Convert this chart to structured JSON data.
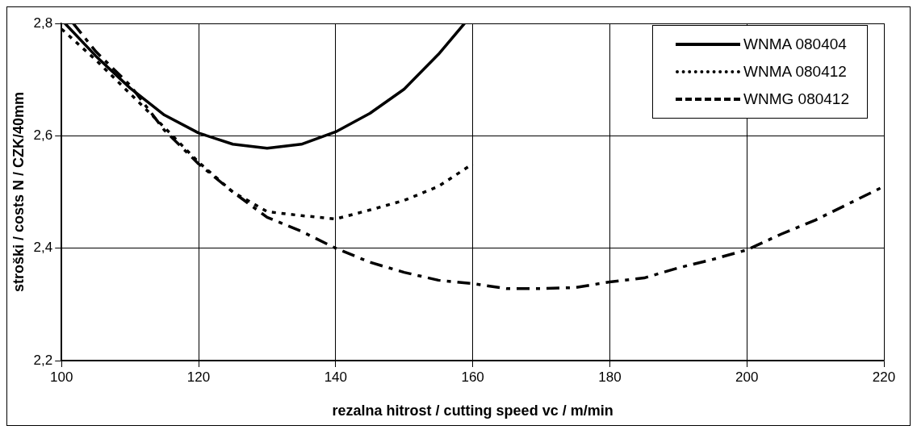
{
  "chart_data": {
    "type": "line",
    "xlabel": "rezalna hitrost / cutting speed vc / m/min",
    "ylabel": "stroški / costs N / CZK/40mm",
    "xlim": [
      100,
      220
    ],
    "xticks": [
      100,
      120,
      140,
      160,
      180,
      200,
      220
    ],
    "ylim": [
      2.2,
      2.8
    ],
    "yticks": [
      {
        "value": 2.2,
        "label": "2,2"
      },
      {
        "value": 2.4,
        "label": "2,4"
      },
      {
        "value": 2.6,
        "label": "2,6"
      },
      {
        "value": 2.8,
        "label": "2,8"
      }
    ],
    "grid": true,
    "legend": "top right",
    "marker": "none",
    "series": [
      {
        "name": "WNMA 080404",
        "color": "#000000",
        "line_style": "solid",
        "x": [
          100.5,
          105,
          110,
          115,
          120,
          125,
          130,
          135,
          140,
          145,
          150,
          155,
          158.8
        ],
        "values": [
          2.8,
          2.742,
          2.685,
          2.637,
          2.605,
          2.585,
          2.578,
          2.585,
          2.607,
          2.64,
          2.683,
          2.745,
          2.8
        ]
      },
      {
        "name": "WNMA 080412",
        "color": "#000000",
        "line_style": "dotted",
        "x": [
          100,
          105,
          110,
          115,
          120,
          125,
          130,
          135,
          140,
          145,
          150,
          155,
          160
        ],
        "values": [
          2.79,
          2.735,
          2.675,
          2.615,
          2.553,
          2.5,
          2.465,
          2.458,
          2.452,
          2.468,
          2.485,
          2.51,
          2.55
        ]
      },
      {
        "name": "WNMG 080412",
        "color": "#000000",
        "line_style": "dashed",
        "x": [
          101.7,
          105,
          110,
          115,
          120,
          125,
          130,
          135,
          140,
          145,
          150,
          155,
          160,
          165,
          170,
          175,
          180,
          185,
          190,
          195,
          200,
          205,
          210,
          215,
          220
        ],
        "values": [
          2.8,
          2.75,
          2.69,
          2.61,
          2.55,
          2.5,
          2.455,
          2.43,
          2.4,
          2.375,
          2.357,
          2.343,
          2.337,
          2.328,
          2.328,
          2.33,
          2.34,
          2.347,
          2.365,
          2.38,
          2.397,
          2.425,
          2.45,
          2.48,
          2.51
        ]
      }
    ]
  }
}
